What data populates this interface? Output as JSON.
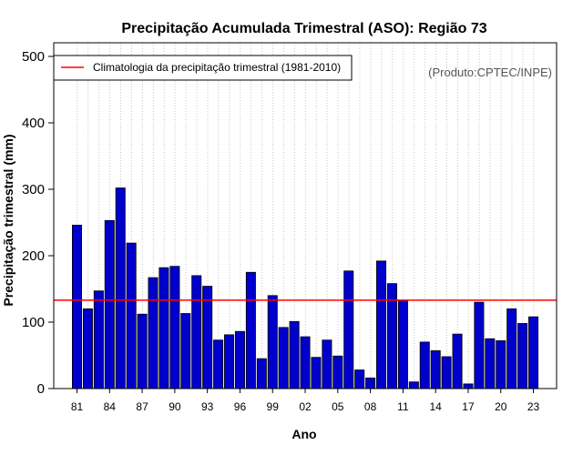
{
  "chart_data": {
    "type": "bar",
    "title": "Precipitação Acumulada Trimestral (ASO): Região 73",
    "xlabel": "Ano",
    "ylabel": "Precipitação trimestral (mm)",
    "ylim": [
      0,
      500
    ],
    "yticks": [
      0,
      100,
      200,
      300,
      400,
      500
    ],
    "grid": "vertical dotted",
    "legend_position": "top-left",
    "legend_label": "Climatologia da precipitação trimestral (1981-2010)",
    "credit": "(Produto:CPTEC/INPE)",
    "bar_color": "#0000CC",
    "climatology_color": "#FF0000",
    "climatology": 133,
    "categories": [
      "1981",
      "1982",
      "1983",
      "1984",
      "1985",
      "1986",
      "1987",
      "1988",
      "1989",
      "1990",
      "1991",
      "1992",
      "1993",
      "1994",
      "1995",
      "1996",
      "1997",
      "1998",
      "1999",
      "2000",
      "2001",
      "2002",
      "2003",
      "2004",
      "2005",
      "2006",
      "2007",
      "2008",
      "2009",
      "2010",
      "2011",
      "2012",
      "2013",
      "2014",
      "2015",
      "2016",
      "2017",
      "2018",
      "2019",
      "2020",
      "2021",
      "2022",
      "2023"
    ],
    "values": [
      246,
      120,
      147,
      253,
      302,
      219,
      112,
      167,
      182,
      184,
      113,
      170,
      154,
      73,
      81,
      86,
      175,
      45,
      140,
      92,
      101,
      78,
      47,
      73,
      49,
      177,
      28,
      16,
      192,
      158,
      133,
      10,
      70,
      57,
      48,
      82,
      7,
      130,
      75,
      72,
      120,
      98,
      108
    ],
    "xtick_labels": [
      {
        "index": 0,
        "label": "81"
      },
      {
        "index": 3,
        "label": "84"
      },
      {
        "index": 6,
        "label": "87"
      },
      {
        "index": 9,
        "label": "90"
      },
      {
        "index": 12,
        "label": "93"
      },
      {
        "index": 15,
        "label": "96"
      },
      {
        "index": 18,
        "label": "99"
      },
      {
        "index": 21,
        "label": "02"
      },
      {
        "index": 24,
        "label": "05"
      },
      {
        "index": 27,
        "label": "08"
      },
      {
        "index": 30,
        "label": "11"
      },
      {
        "index": 33,
        "label": "14"
      },
      {
        "index": 36,
        "label": "17"
      },
      {
        "index": 39,
        "label": "20"
      },
      {
        "index": 42,
        "label": "23"
      }
    ]
  }
}
